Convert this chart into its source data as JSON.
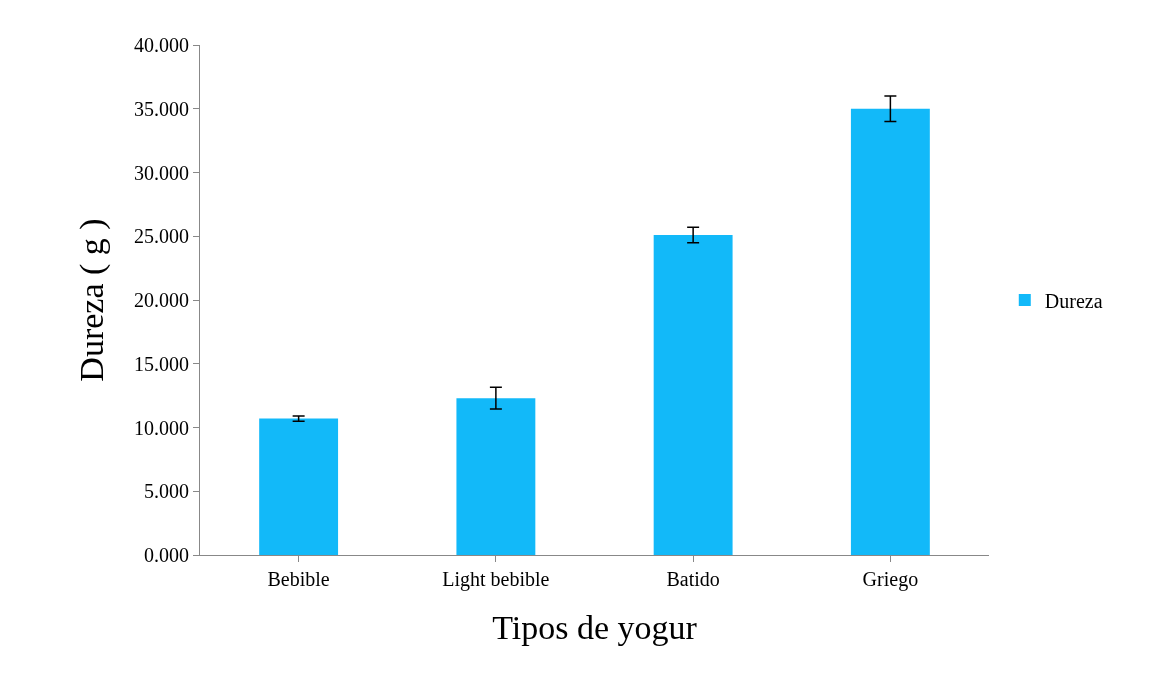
{
  "chart_data": {
    "type": "bar",
    "xlabel": "Tipos de yogur",
    "ylabel": "Dureza ( g )",
    "categories": [
      "Bebible",
      "Light bebible",
      "Batido",
      "Griego"
    ],
    "series": [
      {
        "name": "Dureza",
        "color": "#12b9f9",
        "values": [
          10.7,
          12.3,
          25.1,
          35.0
        ],
        "errors": [
          0.2,
          0.85,
          0.6,
          1.0
        ]
      }
    ],
    "ylim": [
      0,
      40
    ],
    "yticks": [
      {
        "value": 0,
        "label": "0.000"
      },
      {
        "value": 5,
        "label": "5.000"
      },
      {
        "value": 10,
        "label": "10.000"
      },
      {
        "value": 15,
        "label": "15.000"
      },
      {
        "value": 20,
        "label": "20.000"
      },
      {
        "value": 25,
        "label": "25.000"
      },
      {
        "value": 30,
        "label": "30.000"
      },
      {
        "value": 35,
        "label": "35.000"
      },
      {
        "value": 40,
        "label": "40.000"
      }
    ],
    "grid": false,
    "legend": "right"
  }
}
